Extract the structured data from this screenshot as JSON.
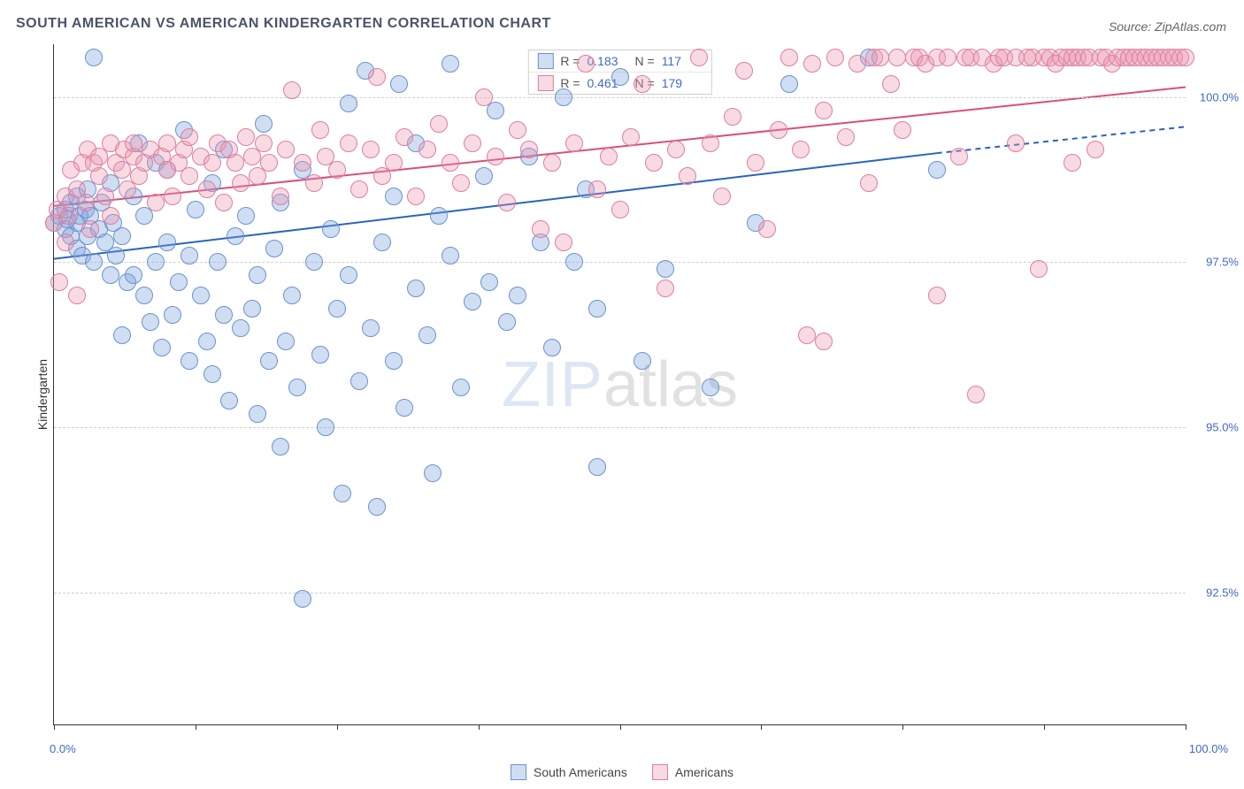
{
  "title": "SOUTH AMERICAN VS AMERICAN KINDERGARTEN CORRELATION CHART",
  "source": "Source: ZipAtlas.com",
  "y_axis_label": "Kindergarten",
  "watermark_zip": "ZIP",
  "watermark_atlas": "atlas",
  "chart": {
    "type": "scatter",
    "xlim": [
      0,
      100
    ],
    "ylim": [
      90.5,
      100.8
    ],
    "y_ticks": [
      92.5,
      95.0,
      97.5,
      100.0
    ],
    "y_tick_labels": [
      "92.5%",
      "95.0%",
      "97.5%",
      "100.0%"
    ],
    "x_ticks": [
      0,
      12.5,
      25,
      37.5,
      50,
      62.5,
      75,
      87.5,
      100
    ],
    "x_tick_labels": {
      "0": "0.0%",
      "100": "100.0%"
    },
    "background_color": "#ffffff",
    "grid_color": "#d0d0d0",
    "marker_radius": 10,
    "marker_stroke_width": 1,
    "series": [
      {
        "name": "South Americans",
        "fill": "rgba(120,160,220,0.35)",
        "stroke": "#6a93cf",
        "R": "0.183",
        "N": "117",
        "trend": {
          "x1": 0,
          "y1": 97.55,
          "x2": 78,
          "y2": 99.15,
          "dash_x2": 100,
          "dash_y2": 99.55,
          "color": "#2a63c0",
          "width": 2
        },
        "points": [
          [
            0,
            98.1
          ],
          [
            0.5,
            98.2
          ],
          [
            1,
            98.0
          ],
          [
            1,
            98.3
          ],
          [
            1.2,
            98.15
          ],
          [
            1.5,
            97.9
          ],
          [
            1.5,
            98.4
          ],
          [
            2,
            97.7
          ],
          [
            2,
            98.5
          ],
          [
            2,
            98.1
          ],
          [
            2.3,
            98.2
          ],
          [
            2.5,
            97.6
          ],
          [
            2.8,
            98.3
          ],
          [
            3,
            97.9
          ],
          [
            3,
            98.6
          ],
          [
            3.2,
            98.2
          ],
          [
            3.5,
            97.5
          ],
          [
            3.5,
            100.6
          ],
          [
            4,
            98.0
          ],
          [
            4.2,
            98.4
          ],
          [
            4.5,
            97.8
          ],
          [
            5,
            98.7
          ],
          [
            5,
            97.3
          ],
          [
            5.2,
            98.1
          ],
          [
            5.5,
            97.6
          ],
          [
            6,
            97.9
          ],
          [
            6,
            96.4
          ],
          [
            6.5,
            97.2
          ],
          [
            7,
            98.5
          ],
          [
            7,
            97.3
          ],
          [
            7.5,
            99.3
          ],
          [
            8,
            97.0
          ],
          [
            8,
            98.2
          ],
          [
            8.5,
            96.6
          ],
          [
            9,
            99.0
          ],
          [
            9,
            97.5
          ],
          [
            9.5,
            96.2
          ],
          [
            10,
            97.8
          ],
          [
            10,
            98.9
          ],
          [
            10.5,
            96.7
          ],
          [
            11,
            97.2
          ],
          [
            11.5,
            99.5
          ],
          [
            12,
            97.6
          ],
          [
            12,
            96.0
          ],
          [
            12.5,
            98.3
          ],
          [
            13,
            97.0
          ],
          [
            13.5,
            96.3
          ],
          [
            14,
            98.7
          ],
          [
            14,
            95.8
          ],
          [
            14.5,
            97.5
          ],
          [
            15,
            96.7
          ],
          [
            15,
            99.2
          ],
          [
            15.5,
            95.4
          ],
          [
            16,
            97.9
          ],
          [
            16.5,
            96.5
          ],
          [
            17,
            98.2
          ],
          [
            17.5,
            96.8
          ],
          [
            18,
            97.3
          ],
          [
            18,
            95.2
          ],
          [
            18.5,
            99.6
          ],
          [
            19,
            96.0
          ],
          [
            19.5,
            97.7
          ],
          [
            20,
            98.4
          ],
          [
            20,
            94.7
          ],
          [
            20.5,
            96.3
          ],
          [
            21,
            97.0
          ],
          [
            21.5,
            95.6
          ],
          [
            22,
            98.9
          ],
          [
            22,
            92.4
          ],
          [
            23,
            97.5
          ],
          [
            23.5,
            96.1
          ],
          [
            24,
            95.0
          ],
          [
            24.5,
            98.0
          ],
          [
            25,
            96.8
          ],
          [
            25.5,
            94.0
          ],
          [
            26,
            97.3
          ],
          [
            26,
            99.9
          ],
          [
            27,
            95.7
          ],
          [
            27.5,
            100.4
          ],
          [
            28,
            96.5
          ],
          [
            28.5,
            93.8
          ],
          [
            29,
            97.8
          ],
          [
            30,
            98.5
          ],
          [
            30,
            96.0
          ],
          [
            30.5,
            100.2
          ],
          [
            31,
            95.3
          ],
          [
            32,
            97.1
          ],
          [
            32,
            99.3
          ],
          [
            33,
            96.4
          ],
          [
            33.5,
            94.3
          ],
          [
            34,
            98.2
          ],
          [
            35,
            97.6
          ],
          [
            35,
            100.5
          ],
          [
            36,
            95.6
          ],
          [
            37,
            96.9
          ],
          [
            38,
            98.8
          ],
          [
            38.5,
            97.2
          ],
          [
            39,
            99.8
          ],
          [
            40,
            96.6
          ],
          [
            41,
            97.0
          ],
          [
            42,
            99.1
          ],
          [
            43,
            97.8
          ],
          [
            44,
            96.2
          ],
          [
            45,
            100.0
          ],
          [
            46,
            97.5
          ],
          [
            47,
            98.6
          ],
          [
            48,
            96.8
          ],
          [
            48,
            94.4
          ],
          [
            50,
            100.3
          ],
          [
            52,
            96.0
          ],
          [
            54,
            97.4
          ],
          [
            58,
            95.6
          ],
          [
            62,
            98.1
          ],
          [
            65,
            100.2
          ],
          [
            72,
            100.6
          ],
          [
            78,
            98.9
          ]
        ]
      },
      {
        "name": "Americans",
        "fill": "rgba(235,150,175,0.35)",
        "stroke": "#de7f9e",
        "R": "0.461",
        "N": "179",
        "trend": {
          "x1": 0,
          "y1": 98.35,
          "x2": 100,
          "y2": 100.15,
          "color": "#d94f7b",
          "width": 2
        },
        "points": [
          [
            0,
            98.1
          ],
          [
            0.3,
            98.3
          ],
          [
            0.5,
            97.2
          ],
          [
            1,
            98.5
          ],
          [
            1,
            97.8
          ],
          [
            1.3,
            98.2
          ],
          [
            1.5,
            98.9
          ],
          [
            2,
            97.0
          ],
          [
            2,
            98.6
          ],
          [
            2.5,
            99.0
          ],
          [
            2.8,
            98.4
          ],
          [
            3,
            99.2
          ],
          [
            3.2,
            98.0
          ],
          [
            3.5,
            99.0
          ],
          [
            4,
            98.8
          ],
          [
            4,
            99.1
          ],
          [
            4.5,
            98.5
          ],
          [
            5,
            99.3
          ],
          [
            5,
            98.2
          ],
          [
            5.5,
            99.0
          ],
          [
            6,
            98.9
          ],
          [
            6.2,
            99.2
          ],
          [
            6.5,
            98.6
          ],
          [
            7,
            99.1
          ],
          [
            7,
            99.3
          ],
          [
            7.5,
            98.8
          ],
          [
            8,
            99.0
          ],
          [
            8.5,
            99.2
          ],
          [
            9,
            98.4
          ],
          [
            9.5,
            99.1
          ],
          [
            10,
            98.9
          ],
          [
            10,
            99.3
          ],
          [
            10.5,
            98.5
          ],
          [
            11,
            99.0
          ],
          [
            11.5,
            99.2
          ],
          [
            12,
            98.8
          ],
          [
            12,
            99.4
          ],
          [
            13,
            99.1
          ],
          [
            13.5,
            98.6
          ],
          [
            14,
            99.0
          ],
          [
            14.5,
            99.3
          ],
          [
            15,
            98.4
          ],
          [
            15.5,
            99.2
          ],
          [
            16,
            99.0
          ],
          [
            16.5,
            98.7
          ],
          [
            17,
            99.4
          ],
          [
            17.5,
            99.1
          ],
          [
            18,
            98.8
          ],
          [
            18.5,
            99.3
          ],
          [
            19,
            99.0
          ],
          [
            20,
            98.5
          ],
          [
            20.5,
            99.2
          ],
          [
            21,
            100.1
          ],
          [
            22,
            99.0
          ],
          [
            23,
            98.7
          ],
          [
            23.5,
            99.5
          ],
          [
            24,
            99.1
          ],
          [
            25,
            98.9
          ],
          [
            26,
            99.3
          ],
          [
            27,
            98.6
          ],
          [
            28,
            99.2
          ],
          [
            28.5,
            100.3
          ],
          [
            29,
            98.8
          ],
          [
            30,
            99.0
          ],
          [
            31,
            99.4
          ],
          [
            32,
            98.5
          ],
          [
            33,
            99.2
          ],
          [
            34,
            99.6
          ],
          [
            35,
            99.0
          ],
          [
            36,
            98.7
          ],
          [
            37,
            99.3
          ],
          [
            38,
            100.0
          ],
          [
            39,
            99.1
          ],
          [
            40,
            98.4
          ],
          [
            41,
            99.5
          ],
          [
            42,
            99.2
          ],
          [
            43,
            98.0
          ],
          [
            44,
            99.0
          ],
          [
            45,
            97.8
          ],
          [
            46,
            99.3
          ],
          [
            47,
            100.5
          ],
          [
            48,
            98.6
          ],
          [
            49,
            99.1
          ],
          [
            50,
            98.3
          ],
          [
            51,
            99.4
          ],
          [
            52,
            100.2
          ],
          [
            53,
            99.0
          ],
          [
            54,
            97.1
          ],
          [
            55,
            99.2
          ],
          [
            56,
            98.8
          ],
          [
            57,
            100.6
          ],
          [
            58,
            99.3
          ],
          [
            59,
            98.5
          ],
          [
            60,
            99.7
          ],
          [
            61,
            100.4
          ],
          [
            62,
            99.0
          ],
          [
            63,
            98.0
          ],
          [
            64,
            99.5
          ],
          [
            65,
            100.6
          ],
          [
            66,
            99.2
          ],
          [
            66.5,
            96.4
          ],
          [
            67,
            100.5
          ],
          [
            68,
            99.8
          ],
          [
            68,
            96.3
          ],
          [
            69,
            100.6
          ],
          [
            70,
            99.4
          ],
          [
            71,
            100.5
          ],
          [
            72,
            98.7
          ],
          [
            72.5,
            100.6
          ],
          [
            73,
            100.6
          ],
          [
            74,
            100.2
          ],
          [
            74.5,
            100.6
          ],
          [
            75,
            99.5
          ],
          [
            76,
            100.6
          ],
          [
            76.5,
            100.6
          ],
          [
            77,
            100.5
          ],
          [
            78,
            97.0
          ],
          [
            78,
            100.6
          ],
          [
            79,
            100.6
          ],
          [
            80,
            99.1
          ],
          [
            80.5,
            100.6
          ],
          [
            81,
            100.6
          ],
          [
            81.5,
            95.5
          ],
          [
            82,
            100.6
          ],
          [
            83,
            100.5
          ],
          [
            83.5,
            100.6
          ],
          [
            84,
            100.6
          ],
          [
            85,
            99.3
          ],
          [
            85,
            100.6
          ],
          [
            86,
            100.6
          ],
          [
            86.5,
            100.6
          ],
          [
            87,
            97.4
          ],
          [
            87.5,
            100.6
          ],
          [
            88,
            100.6
          ],
          [
            88.5,
            100.5
          ],
          [
            89,
            100.6
          ],
          [
            89.5,
            100.6
          ],
          [
            90,
            99.0
          ],
          [
            90,
            100.6
          ],
          [
            90.5,
            100.6
          ],
          [
            91,
            100.6
          ],
          [
            91.5,
            100.6
          ],
          [
            92,
            99.2
          ],
          [
            92.5,
            100.6
          ],
          [
            93,
            100.6
          ],
          [
            93.5,
            100.5
          ],
          [
            94,
            100.6
          ],
          [
            94.5,
            100.6
          ],
          [
            95,
            100.6
          ],
          [
            95.5,
            100.6
          ],
          [
            96,
            100.6
          ],
          [
            96.5,
            100.6
          ],
          [
            97,
            100.6
          ],
          [
            97.5,
            100.6
          ],
          [
            98,
            100.6
          ],
          [
            98.5,
            100.6
          ],
          [
            99,
            100.6
          ],
          [
            99.5,
            100.6
          ],
          [
            100,
            100.6
          ]
        ]
      }
    ]
  },
  "legend_bottom": [
    {
      "label": "South Americans"
    },
    {
      "label": "Americans"
    }
  ]
}
